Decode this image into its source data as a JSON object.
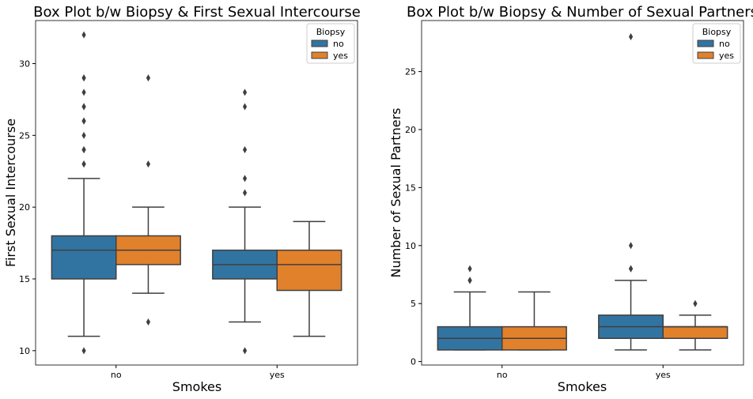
{
  "colors": {
    "no": "#3274a1",
    "yes": "#e1812c",
    "line": "#3f3f3f"
  },
  "chart_data": [
    {
      "type": "box",
      "title": "Box Plot b/w Biopsy & First Sexual Intercourse",
      "xlabel": "Smokes",
      "ylabel": "First Sexual Intercourse",
      "categories": [
        "no",
        "yes"
      ],
      "ylim": [
        9,
        33
      ],
      "yticks": [
        10,
        15,
        20,
        25,
        30
      ],
      "legend": {
        "title": "Biopsy",
        "position": "top-right",
        "entries": [
          "no",
          "yes"
        ]
      },
      "series": [
        {
          "name": "no",
          "boxes": [
            {
              "q1": 15,
              "median": 17,
              "q3": 18,
              "whislo": 11,
              "whishi": 22,
              "fliers": [
                10,
                23,
                23,
                24,
                24,
                25,
                26,
                26,
                27,
                27,
                28,
                29,
                29,
                32
              ]
            },
            {
              "q1": 15,
              "median": 16,
              "q3": 17,
              "whislo": 12,
              "whishi": 20,
              "fliers": [
                10,
                21,
                22,
                24,
                27,
                28
              ]
            }
          ]
        },
        {
          "name": "yes",
          "boxes": [
            {
              "q1": 16,
              "median": 17,
              "q3": 18,
              "whislo": 14,
              "whishi": 20,
              "fliers": [
                12,
                23,
                29
              ]
            },
            {
              "q1": 14.2,
              "median": 16,
              "q3": 17,
              "whislo": 11,
              "whishi": 19,
              "fliers": []
            }
          ]
        }
      ]
    },
    {
      "type": "box",
      "title": "Box Plot b/w Biopsy & Number of Sexual Partners",
      "xlabel": "Smokes",
      "ylabel": "Number of Sexual Partners",
      "categories": [
        "no",
        "yes"
      ],
      "ylim": [
        -0.3,
        29.4
      ],
      "yticks": [
        0,
        5,
        10,
        15,
        20,
        25
      ],
      "legend": {
        "title": "Biopsy",
        "position": "top-right",
        "entries": [
          "no",
          "yes"
        ]
      },
      "series": [
        {
          "name": "no",
          "boxes": [
            {
              "q1": 1,
              "median": 2,
              "q3": 3,
              "whislo": 1,
              "whishi": 6,
              "fliers": [
                7,
                7,
                8
              ]
            },
            {
              "q1": 2,
              "median": 3,
              "q3": 4,
              "whislo": 1,
              "whishi": 7,
              "fliers": [
                8,
                8,
                10,
                28
              ]
            }
          ]
        },
        {
          "name": "yes",
          "boxes": [
            {
              "q1": 1,
              "median": 2,
              "q3": 3,
              "whislo": 1,
              "whishi": 6,
              "fliers": []
            },
            {
              "q1": 2,
              "median": 3,
              "q3": 3,
              "whislo": 1,
              "whishi": 4,
              "fliers": [
                5
              ]
            }
          ]
        }
      ]
    }
  ]
}
